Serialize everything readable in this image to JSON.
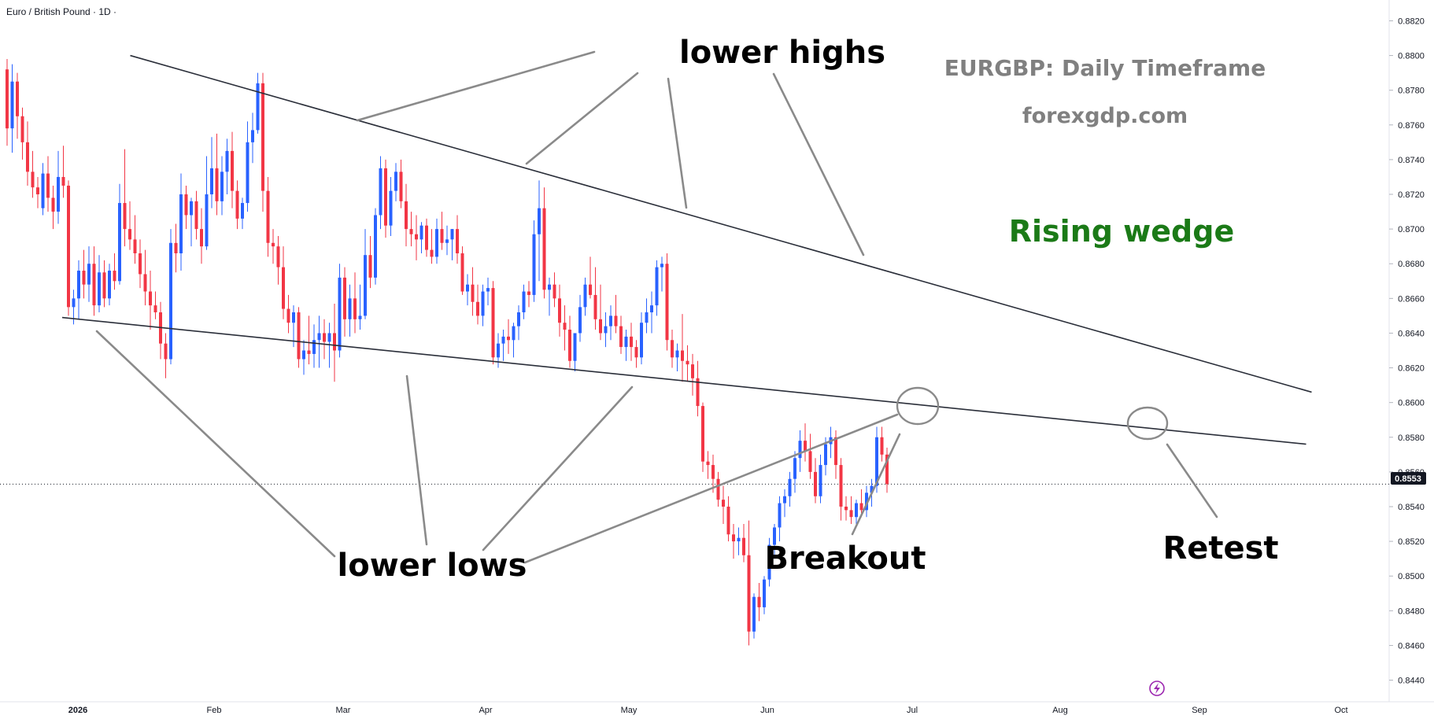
{
  "header": {
    "symbol_title": "Euro / British Pound · 1D ·"
  },
  "annotations": {
    "lower_highs": "lower highs",
    "lower_lows": "lower lows",
    "breakout": "Breakout",
    "retest": "Retest",
    "watermark_title": "EURGBP: Daily Timeframe",
    "watermark_site": "forexgdp.com",
    "pattern": "Rising wedge"
  },
  "colors": {
    "up": "#2962ff",
    "down": "#f23645",
    "annotation_text": "#000000",
    "pattern_text": "#1b7a17",
    "watermark": "#808080",
    "trendline": "#2a2e39",
    "callout_line": "#8a8a8a",
    "price_tag_bg": "#131722"
  },
  "price_axis": {
    "labels": [
      "0.8820",
      "0.8800",
      "0.8780",
      "0.8760",
      "0.8740",
      "0.8720",
      "0.8700",
      "0.8680",
      "0.8660",
      "0.8640",
      "0.8620",
      "0.8600",
      "0.8580",
      "0.8560",
      "0.8540",
      "0.8520",
      "0.8500",
      "0.8480",
      "0.8460",
      "0.8440"
    ],
    "current_price": "0.8553"
  },
  "time_axis": {
    "labels": [
      "2026",
      "Feb",
      "Mar",
      "Apr",
      "May",
      "Jun",
      "Jul",
      "Aug",
      "Sep",
      "Oct"
    ]
  },
  "chart_data": {
    "type": "candlestick",
    "symbol": "Euro / British Pound",
    "interval": "1D",
    "y_range": [
      0.8428,
      0.8832
    ],
    "current_price": 0.8553,
    "candles": [
      [
        0.8792,
        0.8798,
        0.8748,
        0.8758
      ],
      [
        0.8758,
        0.8795,
        0.8744,
        0.8785
      ],
      [
        0.8785,
        0.879,
        0.8752,
        0.8765
      ],
      [
        0.8765,
        0.877,
        0.874,
        0.875
      ],
      [
        0.875,
        0.8762,
        0.8725,
        0.8733
      ],
      [
        0.8733,
        0.8745,
        0.8718,
        0.8724
      ],
      [
        0.8724,
        0.873,
        0.8712,
        0.872
      ],
      [
        0.8712,
        0.8738,
        0.8708,
        0.8732
      ],
      [
        0.8732,
        0.8742,
        0.871,
        0.8718
      ],
      [
        0.8718,
        0.8725,
        0.87,
        0.871
      ],
      [
        0.871,
        0.8745,
        0.8703,
        0.873
      ],
      [
        0.873,
        0.8748,
        0.8718,
        0.8725
      ],
      [
        0.8725,
        0.8728,
        0.865,
        0.8655
      ],
      [
        0.8655,
        0.8665,
        0.8645,
        0.866
      ],
      [
        0.866,
        0.8682,
        0.8648,
        0.8676
      ],
      [
        0.8676,
        0.8688,
        0.866,
        0.8668
      ],
      [
        0.8668,
        0.869,
        0.8658,
        0.868
      ],
      [
        0.868,
        0.869,
        0.865,
        0.8656
      ],
      [
        0.8656,
        0.8685,
        0.8652,
        0.8675
      ],
      [
        0.8675,
        0.8682,
        0.8655,
        0.866
      ],
      [
        0.866,
        0.868,
        0.8656,
        0.8676
      ],
      [
        0.8676,
        0.8686,
        0.8665,
        0.867
      ],
      [
        0.867,
        0.8726,
        0.8668,
        0.8715
      ],
      [
        0.8715,
        0.8746,
        0.869,
        0.87
      ],
      [
        0.87,
        0.8716,
        0.8688,
        0.8694
      ],
      [
        0.8694,
        0.8708,
        0.868,
        0.8686
      ],
      [
        0.8686,
        0.8694,
        0.8666,
        0.8674
      ],
      [
        0.8674,
        0.8688,
        0.8656,
        0.8664
      ],
      [
        0.8664,
        0.8676,
        0.8642,
        0.8656
      ],
      [
        0.8656,
        0.8664,
        0.8648,
        0.8652
      ],
      [
        0.8652,
        0.8658,
        0.8625,
        0.8634
      ],
      [
        0.8634,
        0.864,
        0.8614,
        0.8625
      ],
      [
        0.8625,
        0.87,
        0.8622,
        0.8692
      ],
      [
        0.8692,
        0.8703,
        0.8675,
        0.8686
      ],
      [
        0.8686,
        0.8732,
        0.8676,
        0.872
      ],
      [
        0.872,
        0.8725,
        0.87,
        0.8708
      ],
      [
        0.8708,
        0.8718,
        0.869,
        0.8716
      ],
      [
        0.8716,
        0.8722,
        0.8694,
        0.87
      ],
      [
        0.87,
        0.8712,
        0.868,
        0.869
      ],
      [
        0.869,
        0.8742,
        0.8688,
        0.872
      ],
      [
        0.872,
        0.8753,
        0.8712,
        0.8735
      ],
      [
        0.8735,
        0.8755,
        0.8708,
        0.8716
      ],
      [
        0.8716,
        0.8742,
        0.8708,
        0.8733
      ],
      [
        0.8733,
        0.8752,
        0.872,
        0.8745
      ],
      [
        0.8745,
        0.8756,
        0.8712,
        0.8722
      ],
      [
        0.8722,
        0.8728,
        0.87,
        0.8706
      ],
      [
        0.8706,
        0.8718,
        0.87,
        0.8715
      ],
      [
        0.8715,
        0.8762,
        0.871,
        0.875
      ],
      [
        0.875,
        0.8767,
        0.8738,
        0.8757
      ],
      [
        0.8757,
        0.879,
        0.8755,
        0.8784
      ],
      [
        0.8784,
        0.879,
        0.871,
        0.8722
      ],
      [
        0.8722,
        0.873,
        0.8684,
        0.8692
      ],
      [
        0.8692,
        0.87,
        0.868,
        0.869
      ],
      [
        0.869,
        0.8696,
        0.8668,
        0.8678
      ],
      [
        0.8678,
        0.869,
        0.8648,
        0.8654
      ],
      [
        0.8654,
        0.8662,
        0.864,
        0.8646
      ],
      [
        0.8646,
        0.8656,
        0.8632,
        0.8652
      ],
      [
        0.8652,
        0.8655,
        0.862,
        0.8625
      ],
      [
        0.8625,
        0.8636,
        0.8616,
        0.863
      ],
      [
        0.863,
        0.865,
        0.8622,
        0.8628
      ],
      [
        0.8628,
        0.8645,
        0.862,
        0.8636
      ],
      [
        0.8636,
        0.865,
        0.862,
        0.864
      ],
      [
        0.864,
        0.8648,
        0.8625,
        0.8635
      ],
      [
        0.8635,
        0.8646,
        0.862,
        0.864
      ],
      [
        0.864,
        0.8657,
        0.8612,
        0.863
      ],
      [
        0.863,
        0.868,
        0.8626,
        0.8672
      ],
      [
        0.8672,
        0.8678,
        0.8638,
        0.8648
      ],
      [
        0.8648,
        0.8668,
        0.8638,
        0.866
      ],
      [
        0.866,
        0.8675,
        0.864,
        0.8648
      ],
      [
        0.8648,
        0.8668,
        0.8642,
        0.865
      ],
      [
        0.865,
        0.87,
        0.8648,
        0.8685
      ],
      [
        0.8685,
        0.8696,
        0.8666,
        0.8672
      ],
      [
        0.8672,
        0.8712,
        0.8668,
        0.8708
      ],
      [
        0.8708,
        0.8742,
        0.87,
        0.8735
      ],
      [
        0.8735,
        0.874,
        0.8695,
        0.8702
      ],
      [
        0.8702,
        0.873,
        0.8696,
        0.8722
      ],
      [
        0.8722,
        0.8738,
        0.8716,
        0.8733
      ],
      [
        0.8733,
        0.874,
        0.8712,
        0.8716
      ],
      [
        0.8716,
        0.8726,
        0.869,
        0.87
      ],
      [
        0.87,
        0.871,
        0.869,
        0.8697
      ],
      [
        0.8697,
        0.8708,
        0.8682,
        0.8694
      ],
      [
        0.8694,
        0.8704,
        0.8686,
        0.8702
      ],
      [
        0.8702,
        0.8706,
        0.8684,
        0.8688
      ],
      [
        0.8688,
        0.87,
        0.868,
        0.8684
      ],
      [
        0.8684,
        0.8706,
        0.868,
        0.87
      ],
      [
        0.87,
        0.871,
        0.8688,
        0.8692
      ],
      [
        0.8692,
        0.8702,
        0.8685,
        0.8694
      ],
      [
        0.8694,
        0.87,
        0.8682,
        0.87
      ],
      [
        0.87,
        0.8708,
        0.868,
        0.8686
      ],
      [
        0.8686,
        0.869,
        0.8662,
        0.8664
      ],
      [
        0.8664,
        0.8674,
        0.8656,
        0.8668
      ],
      [
        0.8668,
        0.8678,
        0.865,
        0.8658
      ],
      [
        0.8658,
        0.8668,
        0.8645,
        0.865
      ],
      [
        0.865,
        0.8668,
        0.8644,
        0.8664
      ],
      [
        0.8664,
        0.8672,
        0.8656,
        0.8666
      ],
      [
        0.8666,
        0.867,
        0.8622,
        0.8626
      ],
      [
        0.8626,
        0.864,
        0.862,
        0.8634
      ],
      [
        0.8634,
        0.8642,
        0.8624,
        0.8638
      ],
      [
        0.8638,
        0.8648,
        0.8628,
        0.8636
      ],
      [
        0.8636,
        0.8646,
        0.8626,
        0.8644
      ],
      [
        0.8644,
        0.8656,
        0.8636,
        0.8652
      ],
      [
        0.8652,
        0.8668,
        0.8648,
        0.8664
      ],
      [
        0.8664,
        0.867,
        0.8655,
        0.8662
      ],
      [
        0.8662,
        0.8705,
        0.8658,
        0.8697
      ],
      [
        0.8697,
        0.8728,
        0.867,
        0.8712
      ],
      [
        0.8712,
        0.8724,
        0.866,
        0.8665
      ],
      [
        0.8665,
        0.8672,
        0.865,
        0.8668
      ],
      [
        0.8668,
        0.8675,
        0.8655,
        0.866
      ],
      [
        0.866,
        0.8668,
        0.8638,
        0.8646
      ],
      [
        0.8646,
        0.8656,
        0.863,
        0.8642
      ],
      [
        0.8642,
        0.865,
        0.862,
        0.8624
      ],
      [
        0.8624,
        0.864,
        0.8618,
        0.864
      ],
      [
        0.864,
        0.8662,
        0.8635,
        0.8655
      ],
      [
        0.8655,
        0.8672,
        0.865,
        0.8668
      ],
      [
        0.8668,
        0.8684,
        0.866,
        0.8662
      ],
      [
        0.8662,
        0.8678,
        0.8642,
        0.8648
      ],
      [
        0.8648,
        0.8668,
        0.8636,
        0.864
      ],
      [
        0.864,
        0.8652,
        0.8632,
        0.8644
      ],
      [
        0.8644,
        0.8656,
        0.8636,
        0.865
      ],
      [
        0.865,
        0.8662,
        0.864,
        0.8644
      ],
      [
        0.8644,
        0.865,
        0.8628,
        0.8632
      ],
      [
        0.8632,
        0.8642,
        0.8624,
        0.8638
      ],
      [
        0.8638,
        0.8646,
        0.8624,
        0.8632
      ],
      [
        0.8632,
        0.8636,
        0.862,
        0.8626
      ],
      [
        0.8626,
        0.8652,
        0.8622,
        0.8646
      ],
      [
        0.8646,
        0.866,
        0.864,
        0.8652
      ],
      [
        0.8652,
        0.8664,
        0.864,
        0.8656
      ],
      [
        0.8656,
        0.8682,
        0.865,
        0.8678
      ],
      [
        0.8678,
        0.8684,
        0.8664,
        0.868
      ],
      [
        0.868,
        0.8686,
        0.863,
        0.8636
      ],
      [
        0.8636,
        0.8642,
        0.862,
        0.8626
      ],
      [
        0.8626,
        0.8634,
        0.8618,
        0.863
      ],
      [
        0.863,
        0.8651,
        0.8612,
        0.8624
      ],
      [
        0.8624,
        0.8633,
        0.8612,
        0.8622
      ],
      [
        0.8622,
        0.8628,
        0.8604,
        0.8614
      ],
      [
        0.8614,
        0.8624,
        0.8592,
        0.8598
      ],
      [
        0.8598,
        0.86,
        0.856,
        0.8566
      ],
      [
        0.8566,
        0.8572,
        0.8556,
        0.8564
      ],
      [
        0.8564,
        0.857,
        0.8548,
        0.8556
      ],
      [
        0.8556,
        0.856,
        0.854,
        0.8544
      ],
      [
        0.8544,
        0.8552,
        0.853,
        0.854
      ],
      [
        0.854,
        0.8546,
        0.852,
        0.8524
      ],
      [
        0.8524,
        0.853,
        0.851,
        0.852
      ],
      [
        0.852,
        0.8528,
        0.8512,
        0.8522
      ],
      [
        0.8522,
        0.853,
        0.8508,
        0.8512
      ],
      [
        0.8512,
        0.8532,
        0.846,
        0.8468
      ],
      [
        0.8468,
        0.849,
        0.8464,
        0.8488
      ],
      [
        0.8488,
        0.8496,
        0.8474,
        0.8482
      ],
      [
        0.8482,
        0.85,
        0.8478,
        0.8498
      ],
      [
        0.8498,
        0.8522,
        0.8494,
        0.8518
      ],
      [
        0.8518,
        0.853,
        0.851,
        0.8528
      ],
      [
        0.8528,
        0.8546,
        0.852,
        0.8542
      ],
      [
        0.8542,
        0.855,
        0.8534,
        0.8546
      ],
      [
        0.8546,
        0.856,
        0.854,
        0.8556
      ],
      [
        0.8556,
        0.8572,
        0.8548,
        0.8568
      ],
      [
        0.8568,
        0.8584,
        0.856,
        0.8578
      ],
      [
        0.8578,
        0.8588,
        0.8566,
        0.8572
      ],
      [
        0.8572,
        0.8582,
        0.8556,
        0.856
      ],
      [
        0.856,
        0.8568,
        0.8542,
        0.8546
      ],
      [
        0.8546,
        0.857,
        0.8542,
        0.8564
      ],
      [
        0.8564,
        0.858,
        0.8558,
        0.8576
      ],
      [
        0.8576,
        0.8586,
        0.8568,
        0.858
      ],
      [
        0.858,
        0.8584,
        0.8556,
        0.8564
      ],
      [
        0.8564,
        0.8568,
        0.8532,
        0.854
      ],
      [
        0.854,
        0.8546,
        0.8532,
        0.8538
      ],
      [
        0.8538,
        0.8546,
        0.853,
        0.8534
      ],
      [
        0.8534,
        0.8544,
        0.853,
        0.8542
      ],
      [
        0.8542,
        0.855,
        0.8534,
        0.8538
      ],
      [
        0.8538,
        0.8552,
        0.8534,
        0.8548
      ],
      [
        0.8548,
        0.8556,
        0.854,
        0.8552
      ],
      [
        0.8552,
        0.8586,
        0.8548,
        0.858
      ],
      [
        0.858,
        0.8586,
        0.8566,
        0.857
      ],
      [
        0.857,
        0.8574,
        0.8548,
        0.8553
      ]
    ],
    "trendlines": [
      {
        "name": "upper",
        "x_candle": [
          7,
          181
        ],
        "price": [
          0.88,
          0.8606
        ]
      },
      {
        "name": "lower",
        "x_candle": [
          4,
          181
        ],
        "price": [
          0.8649,
          0.8576
        ]
      }
    ],
    "markers": [
      {
        "name": "breakout-circle",
        "candle": 139,
        "price": 0.8598
      },
      {
        "name": "retest-circle",
        "candle": 177,
        "price": 0.8584
      }
    ]
  }
}
